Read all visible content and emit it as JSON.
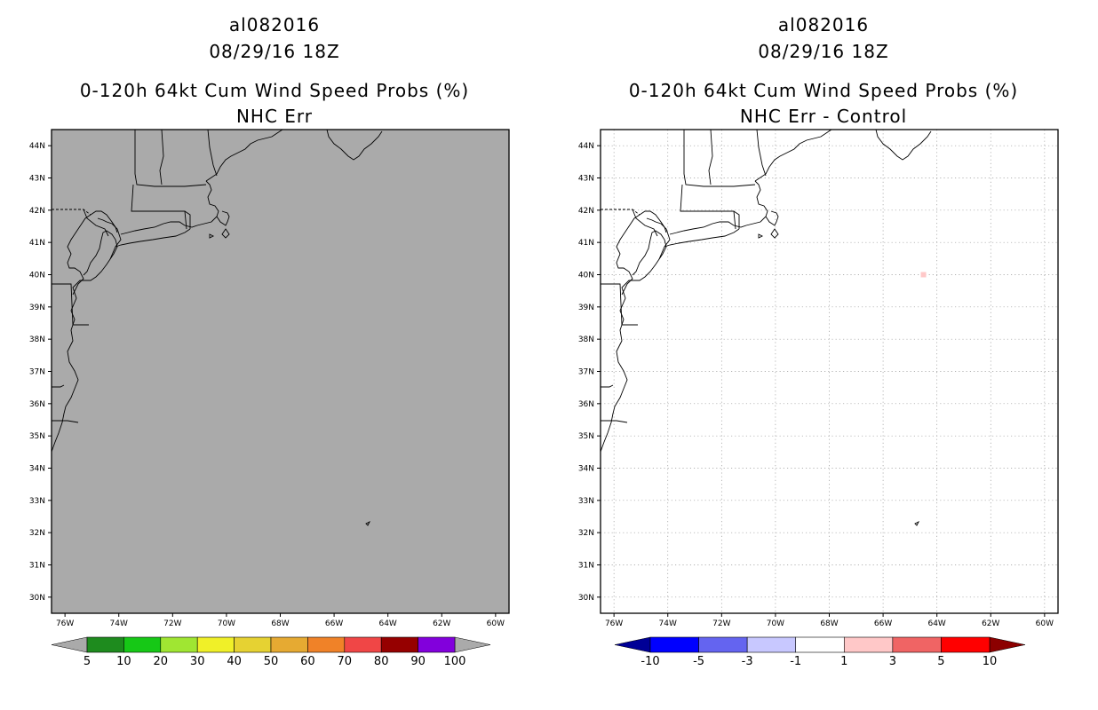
{
  "panels": [
    {
      "storm_id": "al082016",
      "datetime": "08/29/16 18Z",
      "product": "0-120h 64kt Cum Wind Speed Probs (%)",
      "subtitle": "NHC Err",
      "background": "#aaaaaa",
      "grid": false,
      "colorbar": {
        "colors": [
          "#1e8b1e",
          "#16c816",
          "#a0e632",
          "#f0f028",
          "#e6d232",
          "#e6aa32",
          "#f08228",
          "#f04646",
          "#960000",
          "#8200dc"
        ],
        "ends": [
          "#aaaaaa",
          "#aaaaaa"
        ],
        "labels": [
          "5",
          "10",
          "20",
          "30",
          "40",
          "50",
          "60",
          "70",
          "80",
          "90",
          "100"
        ]
      }
    },
    {
      "storm_id": "al082016",
      "datetime": "08/29/16 18Z",
      "product": "0-120h 64kt Cum Wind Speed Probs (%)",
      "subtitle": "NHC Err - Control",
      "background": "#ffffff",
      "grid": true,
      "colorbar": {
        "colors": [
          "#0000ff",
          "#6464f0",
          "#c8c8ff",
          "#ffffff",
          "#ffc8c8",
          "#f06464",
          "#ff0000"
        ],
        "ends": [
          "#000096",
          "#8c0000"
        ],
        "labels": [
          "-10",
          "-5",
          "-3",
          "-1",
          "1",
          "3",
          "5",
          "10"
        ]
      }
    }
  ],
  "map": {
    "lon_range": [
      -76.5,
      -59.5
    ],
    "lat_range": [
      29.5,
      44.5
    ],
    "lon_ticks": [
      "76W",
      "74W",
      "72W",
      "70W",
      "68W",
      "66W",
      "64W",
      "62W",
      "60W"
    ],
    "lat_ticks": [
      "44N",
      "43N",
      "42N",
      "41N",
      "40N",
      "39N",
      "38N",
      "37N",
      "36N",
      "35N",
      "34N",
      "33N",
      "32N",
      "31N",
      "30N"
    ],
    "coast_color": "#000000"
  },
  "features": {
    "anomaly_point": {
      "lon": -64.5,
      "lat": 40.0,
      "color": "#ffc8c8"
    }
  }
}
